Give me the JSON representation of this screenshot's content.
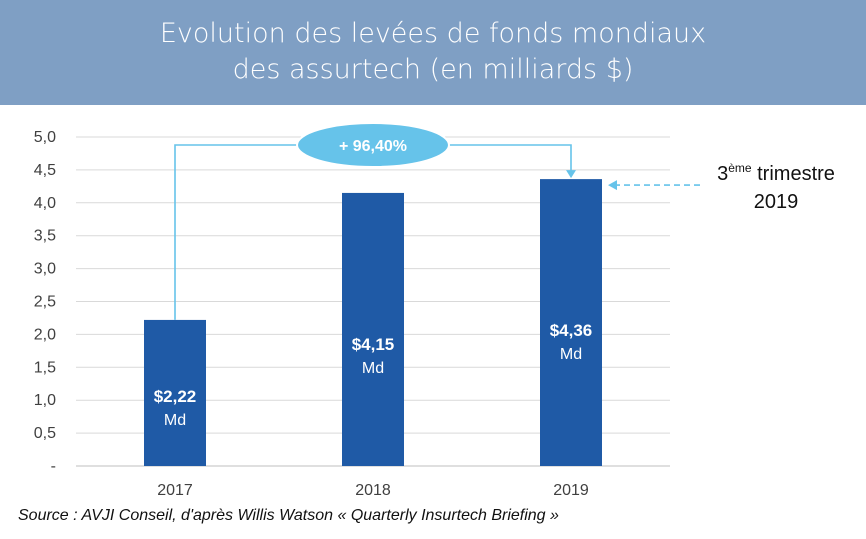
{
  "title": {
    "line1": "Evolution des levées de fonds mondiaux",
    "line2": "des assurtech (en milliards $)"
  },
  "chart_data": {
    "type": "bar",
    "categories": [
      "2017",
      "2018",
      "2019"
    ],
    "values": [
      2.22,
      4.15,
      4.36
    ],
    "value_labels": [
      "$2,22",
      "$4,15",
      "$4,36"
    ],
    "unit_label": "Md",
    "y_ticks": [
      "-",
      "0,5",
      "1,0",
      "1,5",
      "2,0",
      "2,5",
      "3,0",
      "3,5",
      "4,0",
      "4,5",
      "5,0"
    ],
    "ylim": [
      0,
      5
    ],
    "grid": true,
    "bar_color": "#1f5aa6",
    "growth_callout": {
      "text": "+ 96,40%",
      "color": "#66c3ea"
    },
    "side_note": {
      "prefix": "3",
      "superscript": "ème",
      "word": " trimestre",
      "year": "2019"
    }
  },
  "source": "Source : AVJI Conseil, d'après Willis Watson « Quarterly Insurtech Briefing »"
}
